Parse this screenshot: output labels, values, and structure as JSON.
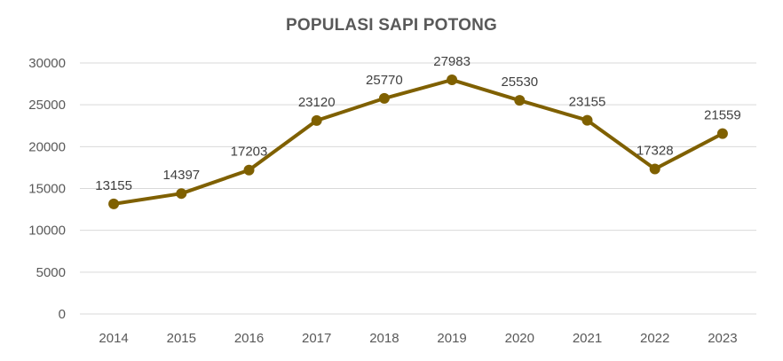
{
  "chart_data": {
    "type": "line",
    "title": "POPULASI SAPI POTONG",
    "categories": [
      "2014",
      "2015",
      "2016",
      "2017",
      "2018",
      "2019",
      "2020",
      "2021",
      "2022",
      "2023"
    ],
    "series": [
      {
        "values": [
          13155,
          14397,
          17203,
          23120,
          25770,
          27983,
          25530,
          23155,
          17328,
          21559
        ]
      }
    ],
    "data_labels": [
      "13155",
      "14397",
      "17203",
      "23120",
      "25770",
      "27983",
      "25530",
      "23155",
      "17328",
      "21559"
    ],
    "y_ticks": [
      "0",
      "5000",
      "10000",
      "15000",
      "20000",
      "25000",
      "30000"
    ],
    "ylim": [
      0,
      30000
    ],
    "grid": true,
    "legend": "none",
    "colors": {
      "line": "#7f6000",
      "grid": "#d9d9d9",
      "text": "#595959"
    }
  }
}
